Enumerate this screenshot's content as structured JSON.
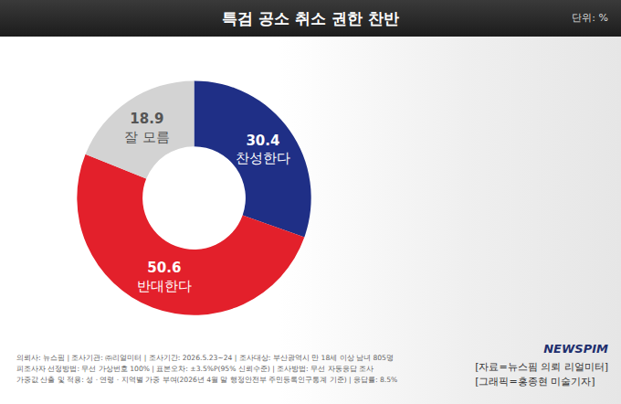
{
  "chart_data": {
    "type": "pie",
    "title": "특검 공소 취소 권한 찬반",
    "unit": "단위: %",
    "categories": [
      "찬성한다",
      "반대한다",
      "잘 모름"
    ],
    "values": [
      30.4,
      50.6,
      18.9
    ],
    "colors": [
      "#1f2f86",
      "#e3202b",
      "#d3d3d3"
    ],
    "data_labels": true,
    "notes": [
      "의뢰사: 뉴스핌 | 조사기관: ㈜리얼미터 | 조사기간: 2026.5.23~24 | 조사대상: 부산광역시 만 18세 이상 남녀 805명",
      "피조사자 선정방법: 무선 가상번호 100% | 표본오차: ±3.5%P(95% 신뢰수준) | 조사방법: 무선 자동응답 조사",
      "가중값 산출 및 적용: 성 · 연령 · 지역별 가중 부여(2026년 4월 말 행정안전부 주민등록인구통계 기준) | 응답률: 8.5%"
    ],
    "logo": "NEWSPIM",
    "source": "[자료=뉴스핌 의뢰 리얼미터]",
    "credit": "[그래픽=홍종현 미술기자]"
  }
}
